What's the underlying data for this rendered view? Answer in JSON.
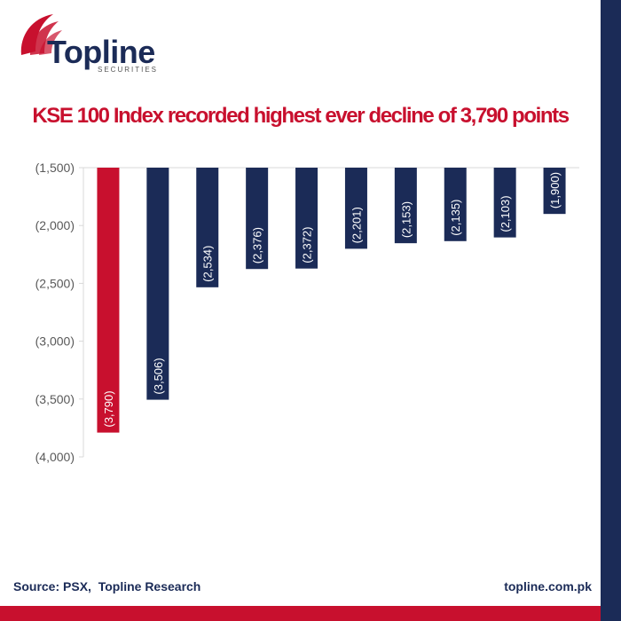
{
  "brand": {
    "name": "Topline",
    "sub": "SECURITIES"
  },
  "colors": {
    "highlight": "#c8102e",
    "bar": "#1b2b57",
    "axis": "#d9d9d9",
    "text": "#595959"
  },
  "chart_data": {
    "type": "bar",
    "title": "KSE 100 Index recorded highest ever decline of 3,790 points",
    "xlabel": "",
    "ylabel": "",
    "categories": [
      "",
      "",
      "",
      "",
      "",
      "",
      "",
      "",
      "",
      ""
    ],
    "values": [
      -3790,
      -3506,
      -2534,
      -2376,
      -2372,
      -2201,
      -2153,
      -2135,
      -2103,
      -1900
    ],
    "value_labels": [
      "(3,790)",
      "(3,506)",
      "(2,534)",
      "(2,376)",
      "(2,372)",
      "(2,201)",
      "(2,153)",
      "(2,135)",
      "(2,103)",
      "(1,900)"
    ],
    "bar_colors": [
      "#c8102e",
      "#1b2b57",
      "#1b2b57",
      "#1b2b57",
      "#1b2b57",
      "#1b2b57",
      "#1b2b57",
      "#1b2b57",
      "#1b2b57",
      "#1b2b57"
    ],
    "ylim": [
      -4000,
      -1500
    ],
    "yticks": [
      -1500,
      -2000,
      -2500,
      -3000,
      -3500,
      -4000
    ],
    "ytick_labels": [
      "(1,500)",
      "(2,000)",
      "(2,500)",
      "(3,000)",
      "(3,500)",
      "(4,000)"
    ],
    "grid": false,
    "legend": "none"
  },
  "footer": {
    "source": "Source: PSX,  Topline Research",
    "website": "topline.com.pk"
  }
}
